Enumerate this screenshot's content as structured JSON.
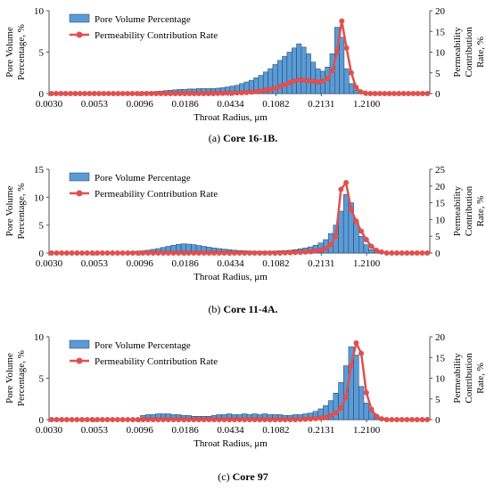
{
  "chart_data": [
    {
      "type": "bar",
      "caption_prefix": "(a)",
      "caption_label": "Core 16-1B.",
      "caption_label_bold": true,
      "xlabel": "Throat Radius, μm",
      "ylabel_left": "Pore Volume Percentage, %",
      "ylabel_right": "Permeability Contribution Rate, %",
      "x_tick_labels": [
        "0.0030",
        "0.0053",
        "0.0096",
        "0.0186",
        "0.0434",
        "0.1082",
        "0.2131",
        "1.2100"
      ],
      "ylim_left": [
        0,
        10
      ],
      "yticks_left": [
        0,
        5,
        10
      ],
      "ylim_right": [
        0,
        20
      ],
      "yticks_right": [
        0,
        5,
        10,
        15,
        20
      ],
      "legend_position": "top-left",
      "series": [
        {
          "name": "Pore Volume Percentage",
          "kind": "bar",
          "axis": "left",
          "color": "#5b9bd5",
          "values": [
            0,
            0,
            0,
            0,
            0,
            0,
            0,
            0,
            0,
            0,
            0,
            0,
            0,
            0,
            0,
            0,
            0.1,
            0.1,
            0.1,
            0.15,
            0.2,
            0.2,
            0.25,
            0.3,
            0.35,
            0.4,
            0.45,
            0.5,
            0.5,
            0.55,
            0.55,
            0.6,
            0.6,
            0.6,
            0.6,
            0.65,
            0.7,
            0.8,
            0.9,
            1.0,
            1.2,
            1.4,
            1.6,
            1.9,
            2.2,
            2.6,
            3.0,
            3.5,
            4.0,
            4.5,
            5.0,
            5.5,
            6.0,
            5.6,
            4.8,
            3.8,
            3.0,
            2.7,
            3.2,
            4.8,
            8.0,
            6.8,
            3.0,
            1.2,
            0.4,
            0.1,
            0,
            0,
            0,
            0,
            0,
            0,
            0,
            0,
            0,
            0,
            0,
            0,
            0,
            0
          ]
        },
        {
          "name": "Permeability Contribution Rate",
          "kind": "line",
          "axis": "right",
          "color": "#e05050",
          "values": [
            0,
            0,
            0,
            0,
            0,
            0,
            0,
            0,
            0,
            0,
            0,
            0,
            0,
            0,
            0,
            0,
            0,
            0,
            0,
            0,
            0,
            0,
            0,
            0,
            0,
            0,
            0,
            0,
            0,
            0,
            0,
            0,
            0,
            0,
            0,
            0.05,
            0.05,
            0.1,
            0.1,
            0.15,
            0.2,
            0.25,
            0.35,
            0.45,
            0.6,
            0.8,
            1.0,
            1.3,
            1.7,
            2.1,
            2.6,
            3.0,
            3.3,
            3.2,
            3.1,
            3.0,
            2.8,
            3.0,
            3.6,
            5.5,
            10.0,
            17.5,
            11.0,
            5.0,
            1.5,
            0.4,
            0.1,
            0,
            0,
            0,
            0,
            0,
            0,
            0,
            0,
            0,
            0,
            0,
            0,
            0
          ]
        }
      ]
    },
    {
      "type": "bar",
      "caption_prefix": "(b)",
      "caption_label": "Core 11-4A.",
      "caption_label_bold": true,
      "xlabel": "Throat Radius, μm",
      "ylabel_left": "Pore Volume Percentage, %",
      "ylabel_right": "Permeability Contribution Rate, %",
      "x_tick_labels": [
        "0.0030",
        "0.0053",
        "0.0096",
        "0.0186",
        "0.0434",
        "0.1082",
        "0.2131",
        "1.2100"
      ],
      "ylim_left": [
        0,
        15
      ],
      "yticks_left": [
        0,
        5,
        10,
        15
      ],
      "ylim_right": [
        0,
        25
      ],
      "yticks_right": [
        0,
        5,
        10,
        15,
        20,
        25
      ],
      "legend_position": "top-left",
      "series": [
        {
          "name": "Pore Volume Percentage",
          "kind": "bar",
          "axis": "left",
          "color": "#5b9bd5",
          "values": [
            0,
            0,
            0,
            0,
            0,
            0,
            0,
            0,
            0,
            0,
            0,
            0,
            0.1,
            0.1,
            0.15,
            0.2,
            0.25,
            0.3,
            0.4,
            0.5,
            0.65,
            0.8,
            1.0,
            1.2,
            1.4,
            1.55,
            1.65,
            1.6,
            1.5,
            1.35,
            1.2,
            1.05,
            0.9,
            0.8,
            0.7,
            0.6,
            0.5,
            0.45,
            0.4,
            0.35,
            0.3,
            0.3,
            0.3,
            0.3,
            0.35,
            0.4,
            0.45,
            0.5,
            0.6,
            0.75,
            0.9,
            1.1,
            1.4,
            1.8,
            2.4,
            3.5,
            5.0,
            7.5,
            10.5,
            9.0,
            5.5,
            3.0,
            1.5,
            0.6,
            0.2,
            0.05,
            0,
            0,
            0,
            0,
            0,
            0,
            0,
            0,
            0
          ]
        },
        {
          "name": "Permeability Contribution Rate",
          "kind": "line",
          "axis": "right",
          "color": "#e05050",
          "values": [
            0,
            0,
            0,
            0,
            0,
            0,
            0,
            0,
            0,
            0,
            0,
            0,
            0,
            0,
            0,
            0,
            0,
            0,
            0,
            0,
            0,
            0,
            0,
            0,
            0,
            0,
            0,
            0,
            0,
            0,
            0,
            0,
            0,
            0,
            0,
            0,
            0,
            0,
            0,
            0,
            0,
            0,
            0,
            0,
            0,
            0,
            0.05,
            0.1,
            0.15,
            0.2,
            0.3,
            0.4,
            0.6,
            0.9,
            1.4,
            2.5,
            5.0,
            19.0,
            21.0,
            13.0,
            9.5,
            6.5,
            4.0,
            2.0,
            0.8,
            0.3,
            0,
            0,
            0,
            0,
            0,
            0,
            0,
            0,
            0
          ]
        }
      ]
    },
    {
      "type": "bar",
      "caption_prefix": "(c)",
      "caption_label": "Core 97",
      "caption_label_bold": true,
      "xlabel": "Throat Radius, μm",
      "ylabel_left": "Pore Volume Percentage, %",
      "ylabel_right": "Permeability Contribution Rate, %",
      "x_tick_labels": [
        "0.0030",
        "0.0053",
        "0.0096",
        "0.0186",
        "0.0434",
        "0.1082",
        "0.2131",
        "1.2100"
      ],
      "ylim_left": [
        0,
        10
      ],
      "yticks_left": [
        0,
        5,
        10
      ],
      "ylim_right": [
        0,
        20
      ],
      "yticks_right": [
        0,
        5,
        10,
        15,
        20
      ],
      "legend_position": "top-left",
      "series": [
        {
          "name": "Pore Volume Percentage",
          "kind": "bar",
          "axis": "left",
          "color": "#5b9bd5",
          "values": [
            0,
            0,
            0,
            0,
            0,
            0,
            0,
            0,
            0,
            0,
            0,
            0,
            0,
            0,
            0,
            0,
            0,
            0,
            0.5,
            0.6,
            0.6,
            0.7,
            0.7,
            0.7,
            0.6,
            0.6,
            0.5,
            0.5,
            0.4,
            0.4,
            0.4,
            0.4,
            0.5,
            0.6,
            0.6,
            0.7,
            0.6,
            0.6,
            0.7,
            0.6,
            0.7,
            0.6,
            0.7,
            0.6,
            0.6,
            0.6,
            0.5,
            0.5,
            0.6,
            0.6,
            0.7,
            0.8,
            1.0,
            1.3,
            1.7,
            2.3,
            3.2,
            4.5,
            6.5,
            8.8,
            7.8,
            4.0,
            2.0,
            1.0,
            0.5,
            0.2,
            0,
            0,
            0,
            0,
            0,
            0,
            0,
            0,
            0
          ]
        },
        {
          "name": "Permeability Contribution Rate",
          "kind": "line",
          "axis": "right",
          "color": "#e05050",
          "values": [
            0,
            0,
            0,
            0,
            0,
            0,
            0,
            0,
            0,
            0,
            0,
            0,
            0,
            0,
            0,
            0,
            0,
            0,
            0,
            0,
            0,
            0,
            0,
            0,
            0,
            0,
            0,
            0,
            0,
            0,
            0,
            0,
            0,
            0,
            0,
            0,
            0,
            0,
            0,
            0,
            0,
            0,
            0,
            0,
            0,
            0,
            0,
            0,
            0,
            0.05,
            0.1,
            0.15,
            0.25,
            0.4,
            0.6,
            1.0,
            1.6,
            2.8,
            5.5,
            13.0,
            18.5,
            16.0,
            6.5,
            2.5,
            0.8,
            0.2,
            0,
            0,
            0,
            0,
            0,
            0,
            0,
            0,
            0
          ]
        }
      ]
    }
  ]
}
